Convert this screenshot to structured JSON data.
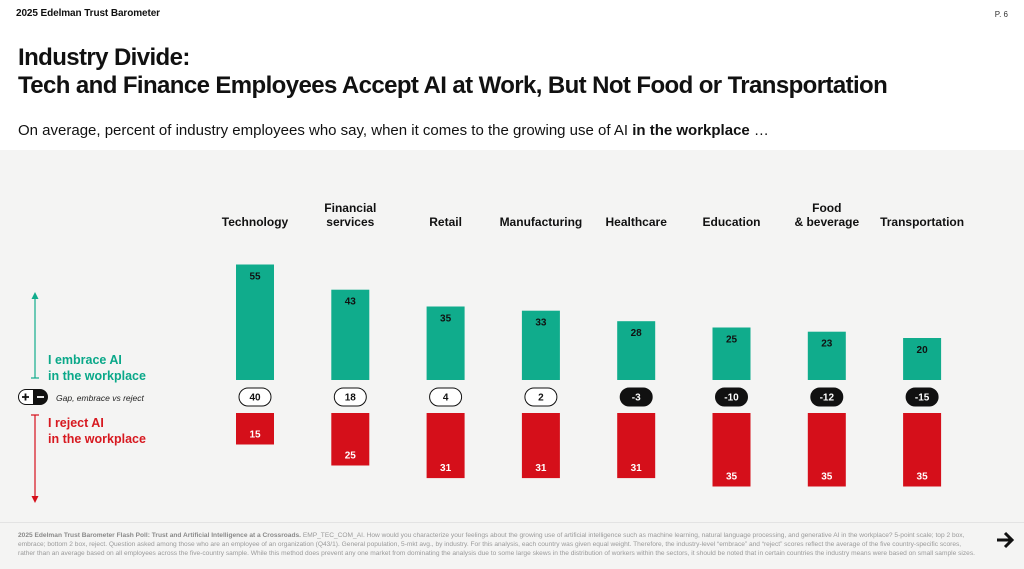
{
  "brand": {
    "year": "2025",
    "name": "Edelman Trust Barometer"
  },
  "page_number": "P. 6",
  "title_line1": "Industry Divide:",
  "title_line2": "Tech and Finance Employees Accept AI at Work, But Not Food or Transportation",
  "subtitle_pre": "On average, percent of industry employees who say, when it comes to the growing use of AI ",
  "subtitle_bold": "in the workplace",
  "subtitle_post": " …",
  "embrace_label_line1": "I embrace AI",
  "embrace_label_line2": "in the workplace",
  "reject_label_line1": "I reject AI",
  "reject_label_line2": "in the workplace",
  "gap_label": "Gap, embrace vs reject",
  "footnote_bold": "2025 Edelman Trust Barometer Flash Poll: Trust and Artificial Intelligence at a Crossroads.",
  "footnote_text": " EMP_TEC_COM_AI. How would you characterize your feelings about the growing use of artificial intelligence such as machine learning, natural language processing, and generative AI in the workplace? 5-point scale; top 2 box, embrace; bottom 2 box, reject. Question asked among those who are an employee of an organization (Q43/1). General population, 5-mkt avg., by industry. For this analysis, each country was given equal weight. Therefore, the industry-level “embrace” and “reject” scores reflect the average of the five country-specific scores, rather than an average based on all employees across the five-country sample. While this method does prevent any one market from dominating the analysis due to some large skews in the distribution of workers within the sectors, it should be noted that in certain countries the industry means were based on small sample sizes.",
  "colors": {
    "embrace": "#10ac8c",
    "reject": "#d50f1a",
    "gap_negative": "#111111",
    "gap_positive": "#ffffff"
  },
  "icons": [
    "plus-minus-icon",
    "arrow-right-icon",
    "up-arrow-icon",
    "down-arrow-icon"
  ],
  "chart_data": {
    "type": "bar",
    "categories": [
      [
        "Technology"
      ],
      [
        "Financial",
        "services"
      ],
      [
        "Retail"
      ],
      [
        "Manufacturing"
      ],
      [
        "Healthcare"
      ],
      [
        "Education"
      ],
      [
        "Food",
        "& beverage"
      ],
      [
        "Transportation"
      ]
    ],
    "series": [
      {
        "name": "I embrace AI in the workplace",
        "values": [
          55,
          43,
          35,
          33,
          28,
          25,
          23,
          20
        ]
      },
      {
        "name": "I reject AI in the workplace",
        "values": [
          15,
          25,
          31,
          31,
          31,
          35,
          35,
          35
        ]
      }
    ],
    "gap": [
      40,
      18,
      4,
      2,
      -3,
      -10,
      -12,
      -15
    ],
    "gap_name": "Gap, embrace vs reject"
  }
}
